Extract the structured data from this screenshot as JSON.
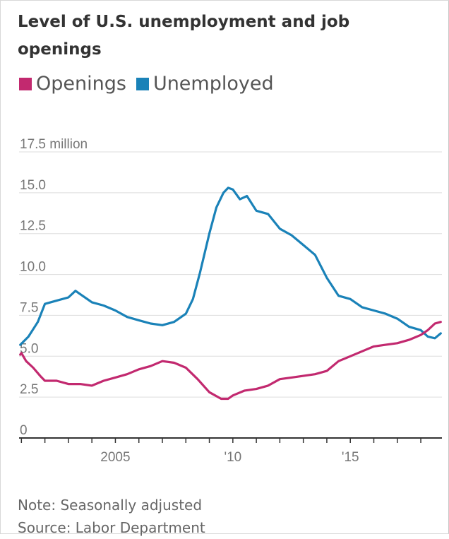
{
  "title": "Level of U.S. unemployment and job openings",
  "legend": {
    "openings_label": "Openings",
    "unemployed_label": "Unemployed"
  },
  "colors": {
    "openings": "#c2296f",
    "unemployed": "#1a82b8",
    "grid": "#dddddd",
    "axis": "#333333"
  },
  "notes": {
    "note": "Note: Seasonally adjusted",
    "source": "Source: Labor Department"
  },
  "chart_data": {
    "type": "line",
    "title": "Level of U.S. unemployment and job openings",
    "ylabel": "",
    "xlabel": "",
    "ylim": [
      0,
      17.5
    ],
    "xlim": [
      2000.9,
      2018.9
    ],
    "y_ticks": [
      {
        "value": 0,
        "label": "0"
      },
      {
        "value": 2.5,
        "label": "2.5"
      },
      {
        "value": 5,
        "label": "5.0"
      },
      {
        "value": 7.5,
        "label": "7.5"
      },
      {
        "value": 10,
        "label": "10.0"
      },
      {
        "value": 12.5,
        "label": "12.5"
      },
      {
        "value": 15,
        "label": "15.0"
      },
      {
        "value": 17.5,
        "label": "17.5 million"
      }
    ],
    "x_labels": [
      {
        "value": 2005,
        "label": "2005"
      },
      {
        "value": 2010,
        "label": "'10"
      },
      {
        "value": 2015,
        "label": "'15"
      }
    ],
    "grid": true,
    "legend_position": "top-left",
    "series": [
      {
        "name": "Openings",
        "x": [
          2000.95,
          2001.0,
          2001.2,
          2001.5,
          2001.8,
          2002.0,
          2002.5,
          2003.0,
          2003.5,
          2004.0,
          2004.5,
          2005.0,
          2005.5,
          2006.0,
          2006.5,
          2007.0,
          2007.5,
          2008.0,
          2008.5,
          2009.0,
          2009.5,
          2009.8,
          2010.0,
          2010.5,
          2011.0,
          2011.5,
          2012.0,
          2012.5,
          2013.0,
          2013.5,
          2014.0,
          2014.5,
          2015.0,
          2015.5,
          2016.0,
          2016.5,
          2017.0,
          2017.5,
          2018.0,
          2018.3,
          2018.6,
          2018.85
        ],
        "y": [
          5.1,
          5.2,
          4.7,
          4.3,
          3.8,
          3.5,
          3.5,
          3.3,
          3.3,
          3.2,
          3.5,
          3.7,
          3.9,
          4.2,
          4.4,
          4.7,
          4.6,
          4.3,
          3.6,
          2.8,
          2.4,
          2.4,
          2.6,
          2.9,
          3.0,
          3.2,
          3.6,
          3.7,
          3.8,
          3.9,
          4.1,
          4.7,
          5.0,
          5.3,
          5.6,
          5.7,
          5.8,
          6.0,
          6.3,
          6.6,
          7.0,
          7.1
        ]
      },
      {
        "name": "Unemployed",
        "x": [
          2000.95,
          2001.3,
          2001.7,
          2002.0,
          2002.5,
          2003.0,
          2003.3,
          2003.5,
          2004.0,
          2004.5,
          2005.0,
          2005.5,
          2006.0,
          2006.5,
          2007.0,
          2007.5,
          2008.0,
          2008.3,
          2008.6,
          2009.0,
          2009.3,
          2009.6,
          2009.8,
          2010.0,
          2010.3,
          2010.6,
          2011.0,
          2011.5,
          2012.0,
          2012.5,
          2013.0,
          2013.5,
          2014.0,
          2014.5,
          2015.0,
          2015.5,
          2016.0,
          2016.5,
          2017.0,
          2017.5,
          2018.0,
          2018.3,
          2018.6,
          2018.85
        ],
        "y": [
          5.7,
          6.2,
          7.1,
          8.2,
          8.4,
          8.6,
          9.0,
          8.8,
          8.3,
          8.1,
          7.8,
          7.4,
          7.2,
          7.0,
          6.9,
          7.1,
          7.6,
          8.5,
          10.1,
          12.5,
          14.1,
          15.0,
          15.3,
          15.2,
          14.6,
          14.8,
          13.9,
          13.7,
          12.8,
          12.4,
          11.8,
          11.2,
          9.8,
          8.7,
          8.5,
          8.0,
          7.8,
          7.6,
          7.3,
          6.8,
          6.6,
          6.2,
          6.1,
          6.4
        ]
      }
    ]
  }
}
